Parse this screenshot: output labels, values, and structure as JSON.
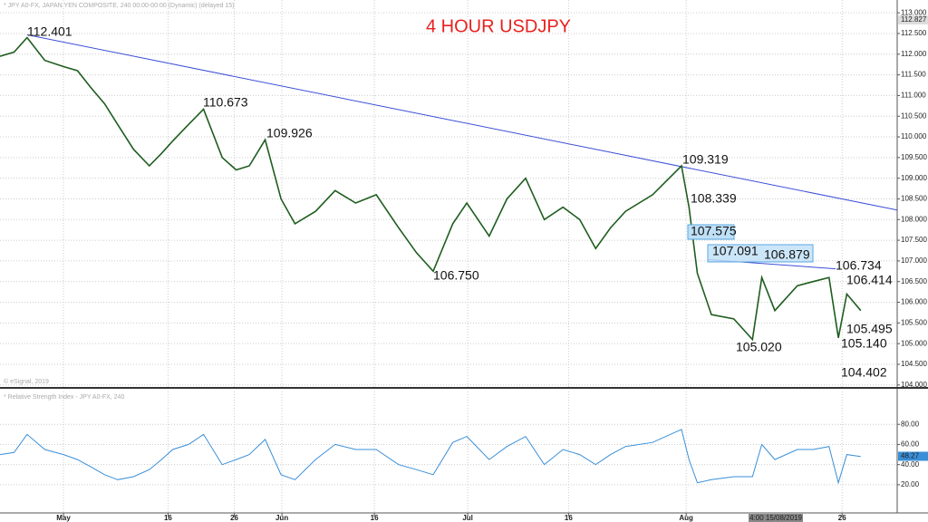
{
  "chart_data": [
    {
      "type": "line",
      "title": "4 HOUR USDJPY",
      "subtitle": "* JPY A0-FX, JAPAN YEN COMPOSITE, 240  00:00-00:00 (Dynamic) (delayed 15)",
      "source": "© eSignal, 2019",
      "color": "#1f5d1f",
      "x": [
        -6.8,
        -5.3,
        -3.9,
        -2,
        0,
        1.5,
        2.9,
        4.4,
        5.8,
        7.5,
        9.2,
        10.5,
        11.7,
        13.4,
        15,
        17,
        18.5,
        19.9,
        21.6,
        23.3,
        24.8,
        27,
        29.1,
        31.3,
        33.5,
        35.9,
        37.8,
        39.6,
        41.7,
        43.2,
        45.6,
        47.5,
        49.5,
        51.5,
        53.5,
        55.3,
        57,
        58.6,
        60.2,
        63.1,
        66.2,
        67,
        67.9,
        69.4,
        71.8,
        73.8,
        74.8,
        76.2,
        78.6,
        80.3,
        82,
        83,
        83.9,
        85.4
      ],
      "values": [
        111.95,
        112.05,
        112.4,
        111.85,
        111.7,
        111.6,
        111.2,
        110.8,
        110.3,
        109.7,
        109.3,
        109.6,
        109.9,
        110.3,
        110.67,
        109.5,
        109.2,
        109.3,
        109.93,
        108.5,
        107.9,
        108.2,
        108.7,
        108.4,
        108.6,
        107.8,
        107.2,
        106.75,
        107.9,
        108.4,
        107.6,
        108.5,
        109.0,
        108.0,
        108.3,
        108.0,
        107.3,
        107.8,
        108.2,
        108.6,
        109.3,
        108.3,
        106.7,
        105.7,
        105.6,
        105.1,
        106.6,
        105.8,
        106.4,
        106.5,
        106.6,
        105.14,
        106.2,
        105.8
      ],
      "xlim": [
        -6.8,
        89.3
      ],
      "xticks": [
        {
          "value": 0,
          "label": "May"
        },
        {
          "value": 11.2,
          "label": "16"
        },
        {
          "value": 18.3,
          "label": "26"
        },
        {
          "value": 23.4,
          "label": "Jun"
        },
        {
          "value": 33.3,
          "label": "16"
        },
        {
          "value": 43.3,
          "label": "Jul"
        },
        {
          "value": 54.1,
          "label": "16"
        },
        {
          "value": 66.7,
          "label": "Aug"
        },
        {
          "value": 83.4,
          "label": "26"
        }
      ],
      "ylim": [
        103.93,
        113.31
      ],
      "yticks": [
        {
          "value": 113,
          "label": "113.000"
        },
        {
          "value": 112.5,
          "label": "112.500"
        },
        {
          "value": 112,
          "label": "112.000"
        },
        {
          "value": 111.5,
          "label": "111.500"
        },
        {
          "value": 111,
          "label": "111.000"
        },
        {
          "value": 110.5,
          "label": "110.500"
        },
        {
          "value": 110,
          "label": "110.000"
        },
        {
          "value": 109.5,
          "label": "109.500"
        },
        {
          "value": 109,
          "label": "109.000"
        },
        {
          "value": 108.5,
          "label": "108.500"
        },
        {
          "value": 108,
          "label": "108.000"
        },
        {
          "value": 107.5,
          "label": "107.500"
        },
        {
          "value": 107,
          "label": "107.000"
        },
        {
          "value": 106.5,
          "label": "106.500"
        },
        {
          "value": 106,
          "label": "106.000"
        },
        {
          "value": 105.5,
          "label": "105.500"
        },
        {
          "value": 105,
          "label": "105.000"
        },
        {
          "value": 104.5,
          "label": "104.500"
        },
        {
          "value": 104,
          "label": "104.000"
        }
      ],
      "y_marker": {
        "value": 112.827,
        "label": "112.827"
      },
      "grid": true,
      "trendlines": [
        {
          "color": "#3b4fd8",
          "x": [
            -3.9,
            89.3
          ],
          "y": [
            112.47,
            108.23
          ]
        },
        {
          "color": "#3b4fd8",
          "x": [
            69.1,
            82.7
          ],
          "y": [
            107.03,
            106.81
          ]
        }
      ],
      "annotations": [
        "112.401",
        "110.673",
        "109.926",
        "109.319",
        "108.339",
        "107.575",
        "106.750",
        "107.091",
        "106.879",
        "106.734",
        "106.414",
        "105.495",
        "105.020",
        "105.140",
        "104.402"
      ],
      "cursor_label": "4:00 15/08/2019"
    },
    {
      "type": "line",
      "subtitle": "* Relative Strength Index - JPY A0-FX, 240",
      "color": "#3a8fd8",
      "x": [
        -6.8,
        -5.3,
        -3.9,
        -2,
        0,
        1.5,
        2.9,
        4.4,
        5.8,
        7.5,
        9.2,
        10.5,
        11.7,
        13.4,
        15,
        17,
        18.5,
        19.9,
        21.6,
        23.3,
        24.8,
        27,
        29.1,
        31.3,
        33.5,
        35.9,
        37.8,
        39.6,
        41.7,
        43.2,
        45.6,
        47.5,
        49.5,
        51.5,
        53.5,
        55.3,
        57,
        58.6,
        60.2,
        63.1,
        66.2,
        67,
        67.9,
        69.4,
        71.8,
        73.8,
        74.8,
        76.2,
        78.6,
        80.3,
        82,
        83,
        83.9,
        85.4
      ],
      "values": [
        50,
        52,
        70,
        55,
        50,
        45,
        38,
        30,
        25,
        28,
        35,
        45,
        55,
        60,
        70,
        40,
        45,
        50,
        65,
        30,
        25,
        45,
        60,
        55,
        55,
        40,
        35,
        30,
        62,
        68,
        45,
        58,
        68,
        40,
        55,
        50,
        40,
        50,
        58,
        62,
        75,
        45,
        22,
        25,
        28,
        28,
        60,
        45,
        55,
        55,
        58,
        22,
        50,
        48
      ],
      "xlim": [
        -6.8,
        89.3
      ],
      "ylim": [
        -8,
        112.6
      ],
      "yticks": [
        {
          "value": 80,
          "label": "80.00"
        },
        {
          "value": 60,
          "label": "60.00"
        },
        {
          "value": 40,
          "label": "40.00"
        },
        {
          "value": 20,
          "label": "20.00"
        }
      ],
      "y_marker": {
        "value": 48.27,
        "label": "48.27"
      },
      "grid": true
    }
  ]
}
